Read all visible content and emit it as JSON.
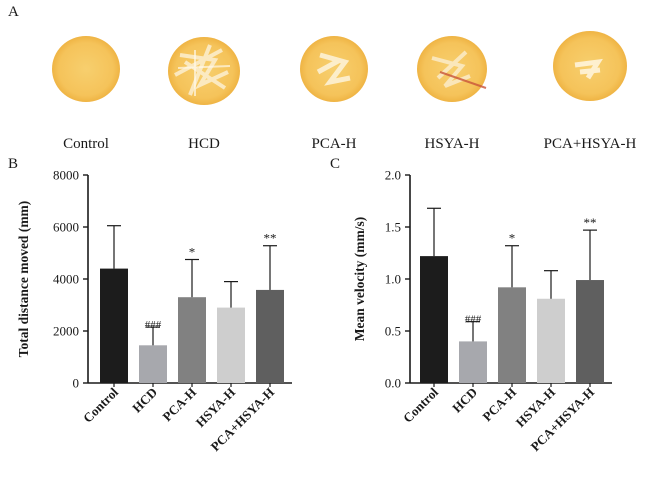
{
  "panels": {
    "a": "A",
    "b": "B",
    "c": "C"
  },
  "nests": [
    {
      "label": "Control"
    },
    {
      "label": "HCD"
    },
    {
      "label": "PCA-H"
    },
    {
      "label": "HSYA-H"
    },
    {
      "label": "PCA+HSYA-H"
    }
  ],
  "colors": {
    "nest": "#f5c75c",
    "nest_edge": "#ecad35",
    "axis": "#1a1a1a"
  },
  "chart_data": [
    {
      "type": "bar",
      "panel": "B",
      "categories": [
        "Control",
        "HCD",
        "PCA-H",
        "HSYA-H",
        "PCA+HSYA-H"
      ],
      "values": [
        4400,
        1450,
        3300,
        2900,
        3580
      ],
      "errors": [
        1650,
        700,
        1450,
        1000,
        1700
      ],
      "annotations": [
        "",
        "###",
        "*",
        "",
        "**"
      ],
      "bar_colors": [
        "#1c1c1c",
        "#a7a8ad",
        "#818181",
        "#cecece",
        "#5f5f5f"
      ],
      "ylabel": "Total distance moved (mm)",
      "ylim": [
        0,
        8000
      ],
      "yticks": [
        "0",
        "2000",
        "4000",
        "6000",
        "8000"
      ],
      "ytick_values": [
        0,
        2000,
        4000,
        6000,
        8000
      ]
    },
    {
      "type": "bar",
      "panel": "C",
      "categories": [
        "Control",
        "HCD",
        "PCA-H",
        "HSYA-H",
        "PCA+HSYA-H"
      ],
      "values": [
        1.22,
        0.4,
        0.92,
        0.81,
        0.99
      ],
      "errors": [
        0.46,
        0.19,
        0.4,
        0.27,
        0.48
      ],
      "annotations": [
        "",
        "###",
        "*",
        "",
        "**"
      ],
      "bar_colors": [
        "#1c1c1c",
        "#a7a8ad",
        "#818181",
        "#cecece",
        "#5f5f5f"
      ],
      "ylabel": "Mean velocity (mm/s)",
      "ylim": [
        0,
        2.0
      ],
      "yticks": [
        "0.0",
        "0.5",
        "1.0",
        "1.5",
        "2.0"
      ],
      "ytick_values": [
        0,
        0.5,
        1.0,
        1.5,
        2.0
      ]
    }
  ]
}
